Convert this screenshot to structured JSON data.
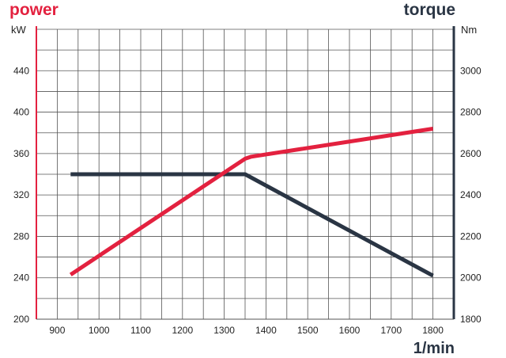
{
  "chart_data": {
    "type": "line",
    "title_left": "power",
    "title_right": "torque",
    "xlabel": "1/min",
    "ylabel_left": "kW",
    "ylabel_right": "Nm",
    "xlim": [
      850,
      1850
    ],
    "ylim_left": [
      200,
      480
    ],
    "ylim_right": [
      1800,
      3200
    ],
    "x_ticks": [
      900,
      1000,
      1100,
      1200,
      1300,
      1400,
      1500,
      1600,
      1700,
      1800
    ],
    "y_left_ticks": [
      200,
      240,
      280,
      320,
      360,
      400,
      440
    ],
    "y_right_ticks": [
      1800,
      2000,
      2200,
      2400,
      2600,
      2800,
      3000
    ],
    "grid": true,
    "colors": {
      "power": "#e3213f",
      "torque": "#2a3544",
      "grid": "#555555"
    },
    "series": [
      {
        "axis": "left",
        "color_key": "power",
        "points": [
          [
            932,
            243
          ],
          [
            1350,
            355
          ],
          [
            1365,
            357
          ],
          [
            1800,
            384
          ]
        ]
      },
      {
        "axis": "right",
        "color_key": "torque",
        "points": [
          [
            932,
            2500
          ],
          [
            1350,
            2500
          ],
          [
            1800,
            2010
          ]
        ]
      }
    ]
  }
}
